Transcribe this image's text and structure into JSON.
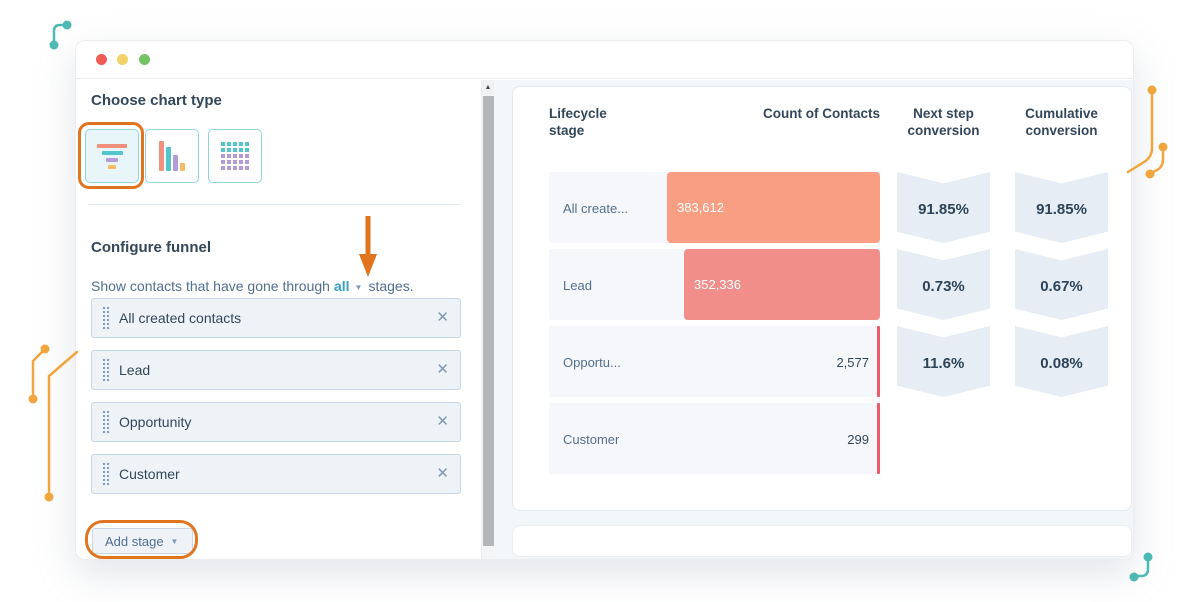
{
  "window": {
    "traffic_lights": [
      {
        "name": "close",
        "color": "#ee5c55"
      },
      {
        "name": "minimize",
        "color": "#f2d269"
      },
      {
        "name": "zoom",
        "color": "#74c365"
      }
    ]
  },
  "left_panel": {
    "chart_type": {
      "title": "Choose chart type",
      "options": [
        {
          "id": "funnel",
          "selected": true
        },
        {
          "id": "column",
          "selected": false
        },
        {
          "id": "grid",
          "selected": false
        }
      ]
    },
    "configure": {
      "title": "Configure funnel",
      "sentence_prefix": "Show contacts that have gone through",
      "dropdown_value": "all",
      "sentence_suffix": "stages.",
      "stages": [
        "All created contacts",
        "Lead",
        "Opportunity",
        "Customer"
      ],
      "add_stage_label": "Add stage"
    }
  },
  "report": {
    "headers": {
      "stage": "Lifecycle stage",
      "count": "Count of Contacts",
      "next": "Next step conversion",
      "cumulative": "Cumulative conversion"
    }
  },
  "chart_data": {
    "type": "bar",
    "subtype": "horizontal-funnel",
    "title": "",
    "xlabel": "Count of Contacts",
    "ylabel": "Lifecycle stage",
    "categories": [
      "All created contacts",
      "Lead",
      "Opportunity",
      "Customer"
    ],
    "values": [
      383612,
      352336,
      2577,
      299
    ],
    "value_labels": [
      "383,612",
      "352,336",
      "2,577",
      "299"
    ],
    "display_labels": [
      "All create...",
      "Lead",
      "Opportu...",
      "Customer"
    ],
    "next_step_conversion": [
      "91.85%",
      "0.73%",
      "11.6%",
      null
    ],
    "cumulative_conversion": [
      "91.85%",
      "0.67%",
      "0.08%",
      null
    ],
    "bar_colors": [
      "#f89e83",
      "#f18e89",
      "#ea5a6d",
      "#ea5a6d"
    ],
    "xlim": [
      0,
      383612
    ]
  },
  "icons": {
    "palette": {
      "salmon": "#f0907d",
      "teal": "#52c4cc",
      "purple": "#b29bd8",
      "orange": "#f5bc62"
    }
  },
  "colors": {
    "annotation_orange": "#e0741f",
    "connector_orange": "#f0a53e",
    "connector_teal": "#4cb9b3",
    "badge_bg": "#e6edf5",
    "heading_text": "#33475b",
    "link_accent": "#35a0c4"
  }
}
